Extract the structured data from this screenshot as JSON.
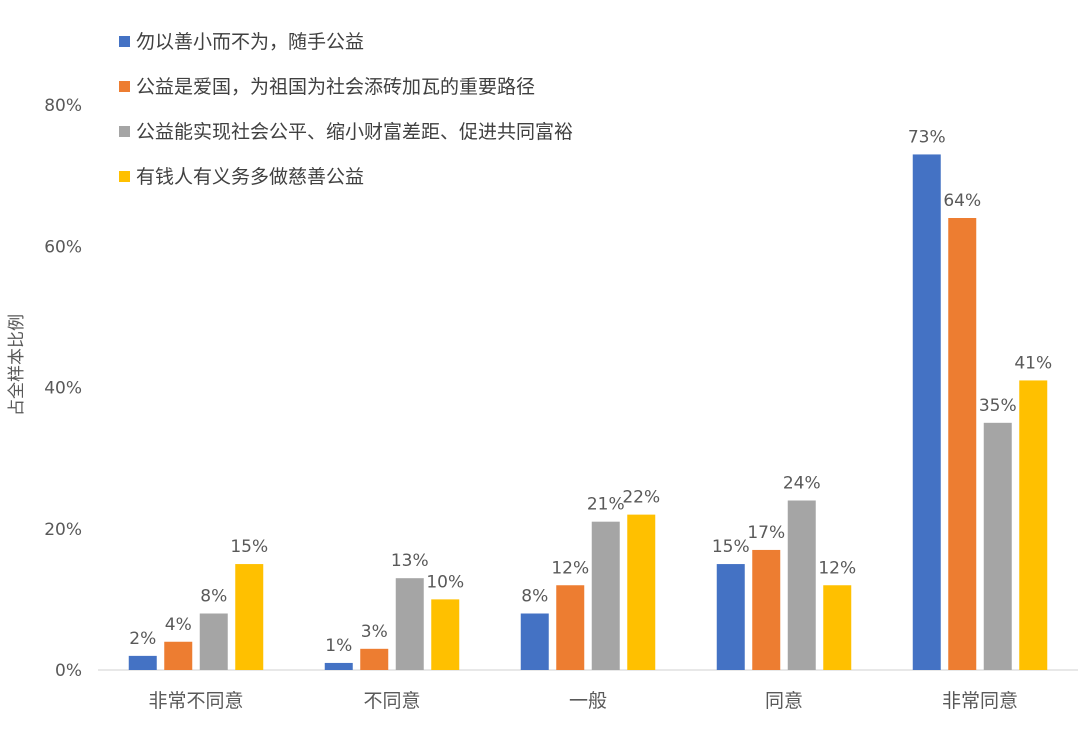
{
  "chart_data": {
    "type": "bar",
    "ylabel": "占全样本比例",
    "xlabel": "",
    "ylim": [
      0,
      80
    ],
    "y_ticks": [
      "0%",
      "20%",
      "40%",
      "60%",
      "80%"
    ],
    "y_tick_values": [
      0,
      20,
      40,
      60,
      80
    ],
    "grid": false,
    "legend_position": "top-left",
    "categories": [
      "非常不同意",
      "不同意",
      "一般",
      "同意",
      "非常同意"
    ],
    "series": [
      {
        "name": "勿以善小而不为，随手公益",
        "color": "#4472C4",
        "values": [
          2,
          1,
          8,
          15,
          73
        ],
        "labels": [
          "2%",
          "1%",
          "8%",
          "15%",
          "73%"
        ]
      },
      {
        "name": "公益是爱国，为祖国为社会添砖加瓦的重要路径",
        "color": "#ED7D31",
        "values": [
          4,
          3,
          12,
          17,
          64
        ],
        "labels": [
          "4%",
          "3%",
          "12%",
          "17%",
          "64%"
        ]
      },
      {
        "name": "公益能实现社会公平、缩小财富差距、促进共同富裕",
        "color": "#A5A5A5",
        "values": [
          8,
          13,
          21,
          24,
          35
        ],
        "labels": [
          "8%",
          "13%",
          "21%",
          "24%",
          "35%"
        ]
      },
      {
        "name": "有钱人有义务多做慈善公益",
        "color": "#FFC000",
        "values": [
          15,
          10,
          22,
          12,
          41
        ],
        "labels": [
          "15%",
          "10%",
          "22%",
          "12%",
          "41%"
        ]
      }
    ]
  }
}
